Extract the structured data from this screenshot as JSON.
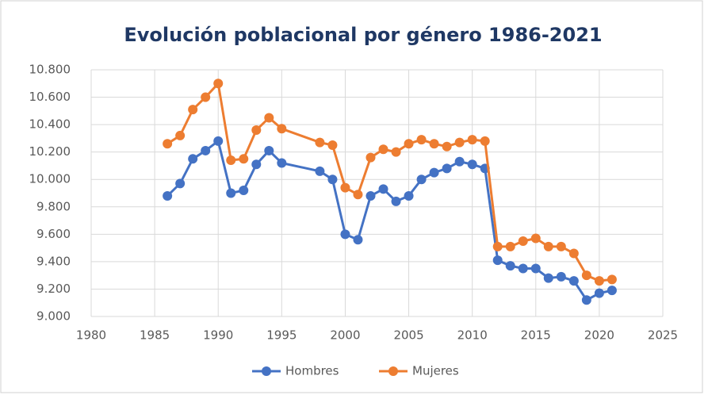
{
  "chart_data": {
    "type": "line",
    "title": "Evolución poblacional por género 1986-2021",
    "x": [
      1986,
      1987,
      1988,
      1989,
      1990,
      1991,
      1992,
      1993,
      1994,
      1995,
      1998,
      1999,
      2000,
      2001,
      2002,
      2003,
      2004,
      2005,
      2006,
      2007,
      2008,
      2009,
      2010,
      2011,
      2012,
      2013,
      2014,
      2015,
      2016,
      2017,
      2018,
      2019,
      2020,
      2021
    ],
    "series": [
      {
        "name": "Hombres",
        "color": "#4472c4",
        "values": [
          9880,
          9970,
          10150,
          10210,
          10280,
          9900,
          9920,
          10110,
          10210,
          10120,
          10060,
          10000,
          9600,
          9560,
          9880,
          9930,
          9840,
          9880,
          10000,
          10050,
          10080,
          10130,
          10110,
          10080,
          9410,
          9370,
          9350,
          9350,
          9280,
          9290,
          9260,
          9120,
          9170,
          9190
        ]
      },
      {
        "name": "Mujeres",
        "color": "#ed7d31",
        "values": [
          10260,
          10320,
          10510,
          10600,
          10700,
          10140,
          10150,
          10360,
          10450,
          10370,
          10270,
          10250,
          9940,
          9890,
          10160,
          10220,
          10200,
          10260,
          10290,
          10260,
          10240,
          10270,
          10290,
          10280,
          9510,
          9510,
          9550,
          9570,
          9510,
          9510,
          9460,
          9300,
          9260,
          9270
        ]
      }
    ],
    "xlim": [
      1980,
      2025
    ],
    "xticks": [
      1980,
      1985,
      1990,
      1995,
      2000,
      2005,
      2010,
      2015,
      2020,
      2025
    ],
    "ylim": [
      9000,
      10800
    ],
    "yticks": [
      {
        "value": 9000,
        "label": "9.000"
      },
      {
        "value": 9200,
        "label": "9.200"
      },
      {
        "value": 9400,
        "label": "9.400"
      },
      {
        "value": 9600,
        "label": "9.600"
      },
      {
        "value": 9800,
        "label": "9.800"
      },
      {
        "value": 10000,
        "label": "10.000"
      },
      {
        "value": 10200,
        "label": "10.200"
      },
      {
        "value": 10400,
        "label": "10.400"
      },
      {
        "value": 10600,
        "label": "10.600"
      },
      {
        "value": 10800,
        "label": "10.800"
      }
    ],
    "grid": true,
    "legend": "bottom"
  }
}
